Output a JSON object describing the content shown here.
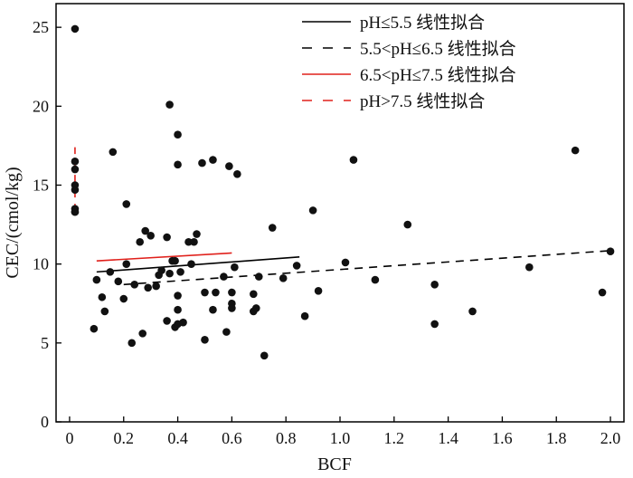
{
  "chart_data": {
    "type": "scatter",
    "xlabel": "BCF",
    "ylabel": "CEC/(cmol/kg)",
    "xlim": [
      -0.05,
      2.05
    ],
    "ylim": [
      0,
      26.5
    ],
    "xticks": [
      0,
      0.2,
      0.4,
      0.6,
      0.8,
      1.0,
      1.2,
      1.4,
      1.6,
      1.8,
      2.0
    ],
    "xtick_labels": [
      "0",
      "0.2",
      "0.4",
      "0.6",
      "0.8",
      "1.0",
      "1.2",
      "1.4",
      "1.6",
      "1.8",
      "2.0"
    ],
    "yticks": [
      0,
      5,
      10,
      15,
      20,
      25
    ],
    "ytick_labels": [
      "0",
      "5",
      "10",
      "15",
      "20",
      "25"
    ],
    "grid": false,
    "legend_position": "top-right",
    "points": {
      "x": [
        0.02,
        0.02,
        0.02,
        0.02,
        0.02,
        0.02,
        0.02,
        0.02,
        0.09,
        0.1,
        0.12,
        0.13,
        0.15,
        0.16,
        0.18,
        0.2,
        0.21,
        0.21,
        0.23,
        0.24,
        0.26,
        0.27,
        0.28,
        0.29,
        0.3,
        0.32,
        0.33,
        0.34,
        0.36,
        0.36,
        0.37,
        0.37,
        0.38,
        0.39,
        0.39,
        0.4,
        0.4,
        0.4,
        0.4,
        0.4,
        0.41,
        0.42,
        0.44,
        0.45,
        0.46,
        0.47,
        0.49,
        0.5,
        0.5,
        0.53,
        0.53,
        0.54,
        0.57,
        0.58,
        0.59,
        0.6,
        0.6,
        0.6,
        0.61,
        0.62,
        0.68,
        0.68,
        0.69,
        0.7,
        0.72,
        0.75,
        0.79,
        0.84,
        0.87,
        0.9,
        0.92,
        1.02,
        1.05,
        1.13,
        1.25,
        1.35,
        1.35,
        1.49,
        1.7,
        1.87,
        1.97,
        2.0
      ],
      "y": [
        24.9,
        16.5,
        16.0,
        15.0,
        14.7,
        13.5,
        13.3,
        13.3,
        5.9,
        9.0,
        7.9,
        7.0,
        9.5,
        17.1,
        8.9,
        7.8,
        13.8,
        10.0,
        5.0,
        8.7,
        11.4,
        5.6,
        12.1,
        8.5,
        11.8,
        8.6,
        9.3,
        9.6,
        11.7,
        6.4,
        9.4,
        20.1,
        10.2,
        6.0,
        10.2,
        18.2,
        16.3,
        8.0,
        7.1,
        6.2,
        9.5,
        6.3,
        11.4,
        10.0,
        11.4,
        11.9,
        16.4,
        8.2,
        5.2,
        16.6,
        7.1,
        8.2,
        9.2,
        5.7,
        16.2,
        8.2,
        7.5,
        7.2,
        9.8,
        15.7,
        8.1,
        7.0,
        7.2,
        9.2,
        4.2,
        12.3,
        9.1,
        9.9,
        6.7,
        13.4,
        8.3,
        10.1,
        16.6,
        9.0,
        12.5,
        8.7,
        6.2,
        7.0,
        9.8,
        17.2,
        8.2,
        10.8
      ]
    },
    "series": [
      {
        "name": "pH≤5.5 线性拟合",
        "color": "#000000",
        "dash": "solid",
        "x": [
          0.1,
          0.85
        ],
        "y": [
          9.5,
          10.45
        ]
      },
      {
        "name": "5.5<pH≤6.5 线性拟合",
        "color": "#000000",
        "dash": "dashed",
        "x": [
          0.2,
          2.0
        ],
        "y": [
          8.7,
          10.85
        ]
      },
      {
        "name": "6.5<pH≤7.5 线性拟合",
        "color": "#e0201b",
        "dash": "solid",
        "x": [
          0.1,
          0.6
        ],
        "y": [
          10.2,
          10.7
        ]
      },
      {
        "name": "pH>7.5 线性拟合",
        "color": "#e0201b",
        "dash": "dashed",
        "x": [
          0.02,
          0.02
        ],
        "y": [
          13.3,
          17.4
        ]
      }
    ]
  }
}
